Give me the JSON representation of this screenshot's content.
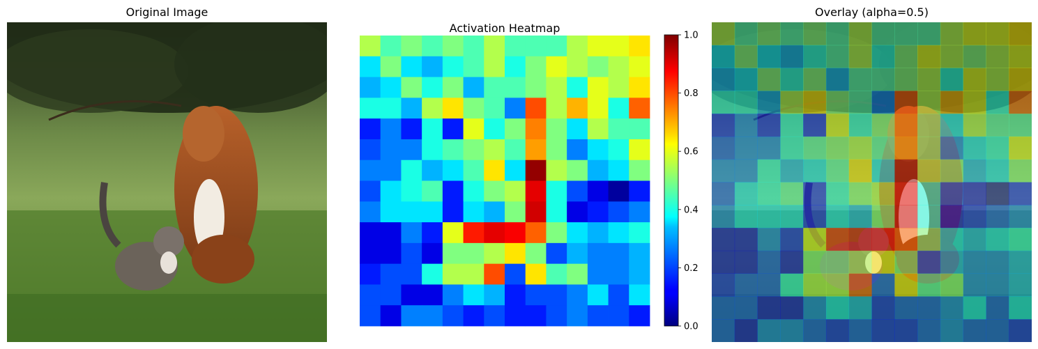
{
  "chart_data": [
    {
      "type": "image",
      "title": "Original Image",
      "subject": "photo"
    },
    {
      "type": "heatmap",
      "title": "Activation Heatmap",
      "cmap": "jet",
      "vmin": 0.0,
      "vmax": 1.0,
      "colorbar": {
        "ticks": [
          0.0,
          0.2,
          0.4,
          0.6,
          0.8,
          1.0
        ],
        "tick_labels": [
          "0.0",
          "0.2",
          "0.4",
          "0.6",
          "0.8",
          "1.0"
        ]
      },
      "values": [
        [
          0.55,
          0.45,
          0.5,
          0.45,
          0.5,
          0.45,
          0.55,
          0.45,
          0.45,
          0.45,
          0.55,
          0.6,
          0.6,
          0.65
        ],
        [
          0.35,
          0.5,
          0.35,
          0.3,
          0.4,
          0.45,
          0.55,
          0.4,
          0.5,
          0.6,
          0.55,
          0.5,
          0.55,
          0.6
        ],
        [
          0.3,
          0.35,
          0.5,
          0.4,
          0.5,
          0.3,
          0.45,
          0.45,
          0.5,
          0.55,
          0.4,
          0.6,
          0.55,
          0.65
        ],
        [
          0.4,
          0.4,
          0.3,
          0.55,
          0.65,
          0.5,
          0.45,
          0.25,
          0.8,
          0.55,
          0.7,
          0.6,
          0.4,
          0.78
        ],
        [
          0.15,
          0.25,
          0.15,
          0.4,
          0.15,
          0.6,
          0.4,
          0.5,
          0.75,
          0.5,
          0.35,
          0.55,
          0.45,
          0.45
        ],
        [
          0.2,
          0.25,
          0.25,
          0.4,
          0.45,
          0.5,
          0.55,
          0.45,
          0.72,
          0.5,
          0.25,
          0.35,
          0.4,
          0.6
        ],
        [
          0.25,
          0.25,
          0.4,
          0.3,
          0.35,
          0.45,
          0.65,
          0.35,
          0.98,
          0.55,
          0.5,
          0.3,
          0.35,
          0.5
        ],
        [
          0.2,
          0.35,
          0.4,
          0.45,
          0.15,
          0.4,
          0.5,
          0.55,
          0.9,
          0.4,
          0.2,
          0.1,
          0.03,
          0.15
        ],
        [
          0.25,
          0.35,
          0.35,
          0.35,
          0.15,
          0.35,
          0.3,
          0.5,
          0.92,
          0.4,
          0.1,
          0.15,
          0.2,
          0.25
        ],
        [
          0.1,
          0.1,
          0.25,
          0.15,
          0.6,
          0.85,
          0.9,
          0.88,
          0.78,
          0.5,
          0.35,
          0.3,
          0.35,
          0.4
        ],
        [
          0.1,
          0.1,
          0.2,
          0.1,
          0.5,
          0.5,
          0.55,
          0.65,
          0.5,
          0.2,
          0.3,
          0.25,
          0.25,
          0.3
        ],
        [
          0.15,
          0.2,
          0.2,
          0.4,
          0.55,
          0.55,
          0.8,
          0.2,
          0.65,
          0.45,
          0.5,
          0.25,
          0.25,
          0.3
        ],
        [
          0.2,
          0.2,
          0.1,
          0.1,
          0.25,
          0.35,
          0.3,
          0.15,
          0.2,
          0.2,
          0.25,
          0.35,
          0.2,
          0.35
        ],
        [
          0.2,
          0.1,
          0.25,
          0.25,
          0.2,
          0.15,
          0.2,
          0.15,
          0.15,
          0.2,
          0.25,
          0.2,
          0.2,
          0.15
        ]
      ]
    },
    {
      "type": "image",
      "title": "Overlay (alpha=0.5)",
      "alpha": 0.5
    }
  ]
}
